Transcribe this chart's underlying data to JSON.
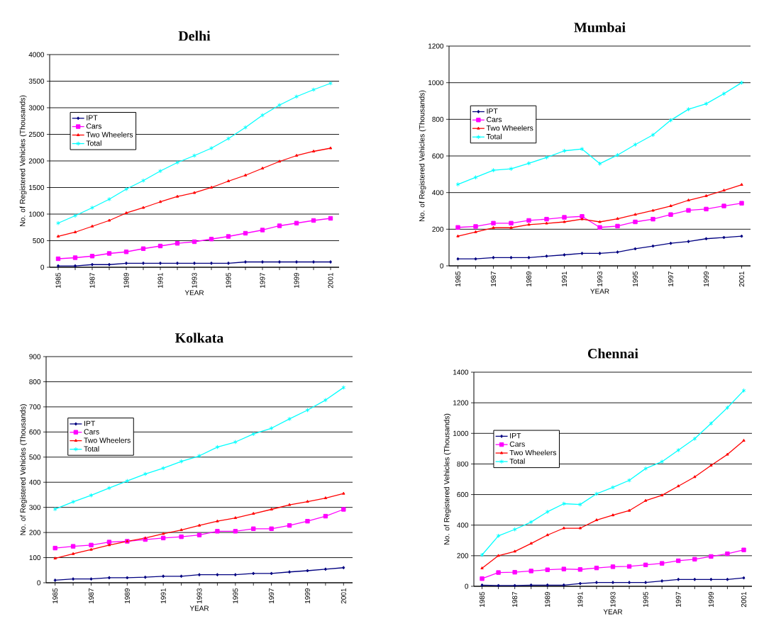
{
  "chart_data": [
    {
      "type": "line",
      "title": "Delhi",
      "xlabel": "YEAR",
      "ylabel": "No. of Registered Vehicles (Thousands)",
      "categories": [
        "1985",
        null,
        "1987",
        null,
        "1989",
        null,
        "1991",
        null,
        "1993",
        null,
        "1995",
        null,
        "1997",
        null,
        "1999",
        null,
        "2001"
      ],
      "ylim": [
        0,
        4000
      ],
      "yticks": [
        0,
        500,
        1000,
        1500,
        2000,
        2500,
        3000,
        3500,
        4000
      ],
      "grid": "y",
      "legend": "left",
      "series": [
        {
          "name": "IPT",
          "color": "#000080",
          "marker": "diamond",
          "values": [
            25,
            25,
            50,
            50,
            75,
            75,
            75,
            75,
            75,
            75,
            75,
            100,
            100,
            100,
            100,
            100,
            100
          ]
        },
        {
          "name": "Cars",
          "color": "#ff00ff",
          "marker": "square",
          "values": [
            160,
            180,
            210,
            260,
            290,
            350,
            400,
            450,
            480,
            530,
            580,
            640,
            700,
            780,
            830,
            880,
            920
          ]
        },
        {
          "name": "Two Wheelers",
          "color": "#ff0000",
          "marker": "triangle",
          "values": [
            580,
            660,
            770,
            880,
            1020,
            1120,
            1230,
            1330,
            1400,
            1500,
            1620,
            1730,
            1860,
            1990,
            2100,
            2180,
            2240
          ]
        },
        {
          "name": "Total",
          "color": "#00ffff",
          "marker": "cross",
          "values": [
            830,
            970,
            1120,
            1280,
            1470,
            1630,
            1810,
            1970,
            2100,
            2240,
            2420,
            2630,
            2860,
            3050,
            3210,
            3340,
            3460
          ]
        }
      ]
    },
    {
      "type": "line",
      "title": "Mumbai",
      "xlabel": "YEAR",
      "ylabel": "No. of Registered Vehicles (Thousands)",
      "categories": [
        "1985",
        null,
        "1987",
        null,
        "1989",
        null,
        "1991",
        null,
        "1993",
        null,
        "1995",
        null,
        "1997",
        null,
        "1999",
        null,
        "2001"
      ],
      "ylim": [
        0,
        1200
      ],
      "yticks": [
        0,
        200,
        400,
        600,
        800,
        1000,
        1200
      ],
      "grid": "y",
      "legend": "left",
      "series": [
        {
          "name": "IPT",
          "color": "#000080",
          "marker": "diamond",
          "values": [
            38,
            38,
            45,
            45,
            45,
            53,
            60,
            68,
            68,
            75,
            93,
            108,
            123,
            133,
            148,
            155,
            162
          ]
        },
        {
          "name": "Cars",
          "color": "#ff00ff",
          "marker": "square",
          "values": [
            210,
            215,
            233,
            233,
            248,
            255,
            265,
            270,
            210,
            217,
            240,
            255,
            280,
            303,
            310,
            327,
            342
          ]
        },
        {
          "name": "Two Wheelers",
          "color": "#ff0000",
          "marker": "triangle",
          "values": [
            162,
            185,
            208,
            208,
            225,
            232,
            240,
            255,
            240,
            257,
            280,
            302,
            327,
            358,
            382,
            412,
            443
          ]
        },
        {
          "name": "Total",
          "color": "#00ffff",
          "marker": "cross",
          "values": [
            445,
            483,
            522,
            530,
            560,
            592,
            628,
            638,
            558,
            605,
            662,
            715,
            795,
            855,
            885,
            940,
            1000
          ]
        }
      ]
    },
    {
      "type": "line",
      "title": "Kolkata",
      "xlabel": "YEAR",
      "ylabel": "No. of Registered Vehicles (Thousands)",
      "categories": [
        "1985",
        null,
        "1987",
        null,
        "1989",
        null,
        "1991",
        null,
        "1993",
        null,
        "1995",
        null,
        "1997",
        null,
        "1999",
        null,
        "2001"
      ],
      "ylim": [
        0,
        900
      ],
      "yticks": [
        0,
        100,
        200,
        300,
        400,
        500,
        600,
        700,
        800,
        900
      ],
      "grid": "y",
      "legend": "left",
      "series": [
        {
          "name": "IPT",
          "color": "#000080",
          "marker": "diamond",
          "values": [
            10,
            15,
            15,
            20,
            20,
            22,
            26,
            26,
            32,
            32,
            32,
            37,
            37,
            43,
            48,
            54,
            60
          ]
        },
        {
          "name": "Cars",
          "color": "#ff00ff",
          "marker": "square",
          "values": [
            138,
            145,
            150,
            162,
            165,
            172,
            178,
            183,
            190,
            205,
            205,
            215,
            215,
            228,
            245,
            265,
            292
          ]
        },
        {
          "name": "Two Wheelers",
          "color": "#ff0000",
          "marker": "triangle",
          "values": [
            97,
            115,
            132,
            150,
            165,
            178,
            195,
            210,
            228,
            245,
            258,
            275,
            292,
            310,
            323,
            337,
            355
          ]
        },
        {
          "name": "Total",
          "color": "#00ffff",
          "marker": "cross",
          "values": [
            293,
            322,
            348,
            377,
            405,
            433,
            456,
            483,
            505,
            540,
            560,
            592,
            615,
            652,
            687,
            727,
            777
          ]
        }
      ]
    },
    {
      "type": "line",
      "title": "Chennai",
      "xlabel": "YEAR",
      "ylabel": "No. of Registered Vehicles (Thousands)",
      "categories": [
        "1985",
        null,
        "1987",
        null,
        "1989",
        null,
        "1991",
        null,
        "1993",
        null,
        "1995",
        null,
        "1997",
        null,
        "1999",
        null,
        "2001"
      ],
      "ylim": [
        0,
        1400
      ],
      "yticks": [
        0,
        200,
        400,
        600,
        800,
        1000,
        1200,
        1400
      ],
      "grid": "y",
      "legend": "left",
      "series": [
        {
          "name": "IPT",
          "color": "#000080",
          "marker": "diamond",
          "values": [
            8,
            5,
            5,
            8,
            8,
            8,
            18,
            25,
            25,
            25,
            25,
            35,
            45,
            45,
            45,
            45,
            55
          ]
        },
        {
          "name": "Cars",
          "color": "#ff00ff",
          "marker": "square",
          "values": [
            50,
            90,
            92,
            100,
            108,
            113,
            110,
            120,
            128,
            130,
            140,
            150,
            167,
            177,
            195,
            213,
            238
          ]
        },
        {
          "name": "Two Wheelers",
          "color": "#ff0000",
          "marker": "triangle",
          "values": [
            118,
            200,
            228,
            280,
            335,
            380,
            380,
            433,
            465,
            495,
            560,
            595,
            655,
            715,
            790,
            862,
            953
          ]
        },
        {
          "name": "Total",
          "color": "#00ffff",
          "marker": "cross",
          "values": [
            205,
            330,
            372,
            420,
            487,
            540,
            535,
            605,
            647,
            693,
            770,
            815,
            890,
            965,
            1065,
            1168,
            1280
          ]
        }
      ]
    }
  ]
}
